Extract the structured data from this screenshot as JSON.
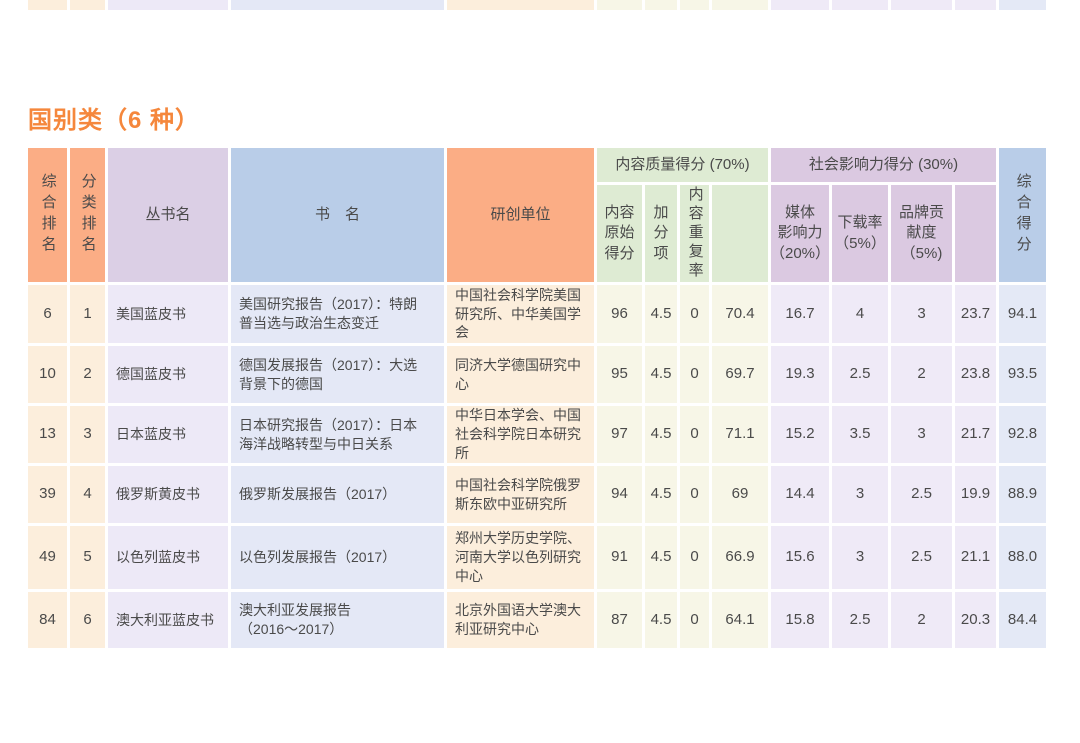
{
  "page": {
    "title": "国别类（6 种）"
  },
  "colors": {
    "title": "#F5873C",
    "header_orange": "#FBAD85",
    "header_lavender": "#DBCFE5",
    "header_blue": "#B9CDE8",
    "header_green": "#DEEBD3",
    "header_purple": "#DBC9E1",
    "cell_peach": "#FCEEDC",
    "cell_lavender": "#EDE9F7",
    "cell_blue": "#E4E8F6",
    "cell_ivory": "#F7F6E7",
    "cell_pale_lavender": "#EFEAF7",
    "cell_score_blue": "#E4E9F6"
  },
  "table": {
    "headers": {
      "overall_rank": "综合排名",
      "category_rank": "分类排名",
      "series_name": "丛书名",
      "book_name": "书　名",
      "research_unit": "研创单位",
      "quality_group": "内容质量得分 (70%)",
      "original_score": "内容\n原始\n得分",
      "bonus": "加\n分\n项",
      "duplication": "内容重复率",
      "social_group": "社会影响力得分 (30%)",
      "media": "媒体\n影响力\n（20%）",
      "download": "下载率\n（5%）",
      "brand": "品牌贡\n献度\n（5%)",
      "overall_score": "综合得分"
    },
    "rows": [
      {
        "overall_rank": "6",
        "category_rank": "1",
        "series": "美国蓝皮书",
        "book": "美国研究报告（2017）：特朗\n普当选与政治生态变迁",
        "unit": "中国社会科学院美国\n研究所、中华美国学\n会",
        "original": "96",
        "bonus": "4.5",
        "dup": "0",
        "quality_total": "70.4",
        "media": "16.7",
        "download": "4",
        "brand": "3",
        "social_total": "23.7",
        "overall": "94.1"
      },
      {
        "overall_rank": "10",
        "category_rank": "2",
        "series": "德国蓝皮书",
        "book": "德国发展报告（2017）：大选\n背景下的德国",
        "unit": "同济大学德国研究中\n心",
        "original": "95",
        "bonus": "4.5",
        "dup": "0",
        "quality_total": "69.7",
        "media": "19.3",
        "download": "2.5",
        "brand": "2",
        "social_total": "23.8",
        "overall": "93.5"
      },
      {
        "overall_rank": "13",
        "category_rank": "3",
        "series": "日本蓝皮书",
        "book": "日本研究报告（2017）：日本\n海洋战略转型与中日关系",
        "unit": "中华日本学会、中国\n社会科学院日本研究\n所",
        "original": "97",
        "bonus": "4.5",
        "dup": "0",
        "quality_total": "71.1",
        "media": "15.2",
        "download": "3.5",
        "brand": "3",
        "social_total": "21.7",
        "overall": "92.8"
      },
      {
        "overall_rank": "39",
        "category_rank": "4",
        "series": "俄罗斯黄皮书",
        "book": "俄罗斯发展报告（2017）",
        "unit": "中国社会科学院俄罗\n斯东欧中亚研究所",
        "original": "94",
        "bonus": "4.5",
        "dup": "0",
        "quality_total": "69",
        "media": "14.4",
        "download": "3",
        "brand": "2.5",
        "social_total": "19.9",
        "overall": "88.9"
      },
      {
        "overall_rank": "49",
        "category_rank": "5",
        "series": "以色列蓝皮书",
        "book": "以色列发展报告（2017）",
        "unit": "郑州大学历史学院、\n河南大学以色列研究\n中心",
        "original": "91",
        "bonus": "4.5",
        "dup": "0",
        "quality_total": "66.9",
        "media": "15.6",
        "download": "3",
        "brand": "2.5",
        "social_total": "21.1",
        "overall": "88.0"
      },
      {
        "overall_rank": "84",
        "category_rank": "6",
        "series": "澳大利亚蓝皮书",
        "book": "澳大利亚发展报告\n（2016～2017）",
        "unit": "北京外国语大学澳大\n利亚研究中心",
        "original": "87",
        "bonus": "4.5",
        "dup": "0",
        "quality_total": "64.1",
        "media": "15.8",
        "download": "2.5",
        "brand": "2",
        "social_total": "20.3",
        "overall": "84.4"
      }
    ]
  }
}
